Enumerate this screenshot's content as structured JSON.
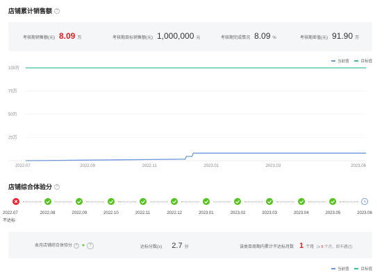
{
  "sales_section": {
    "title": "店铺累计销售额",
    "stats": [
      {
        "label": "考核期销售额(元)",
        "value": "8.09",
        "unit": "万"
      },
      {
        "label": "考核期目标销售额(元)",
        "value": "1,000,000",
        "unit": "元"
      },
      {
        "label": "考核期完成情况",
        "value": "8.09",
        "unit": "%"
      },
      {
        "label": "考核期差值(元)",
        "value": "91.90",
        "unit": "万"
      }
    ],
    "legend": [
      {
        "label": "当前值",
        "color": "#6b95e0"
      },
      {
        "label": "目标值",
        "color": "#3cbf9c"
      }
    ]
  },
  "chart_data": {
    "type": "line",
    "x": [
      "2022.07",
      "2022.08",
      "2022.09",
      "2022.10",
      "2022.11",
      "2022.12",
      "2023.01",
      "2023.02",
      "2023.03",
      "2023.04",
      "2023.05",
      "2023.06"
    ],
    "x_tick_labels": [
      "2022.07",
      "2022.09",
      "2022.11",
      "2023.01",
      "2023.03",
      "2023.06"
    ],
    "y_tick_labels": [
      "100万",
      "75万",
      "50万",
      "25万"
    ],
    "ylim": [
      0,
      100
    ],
    "ylabel": "",
    "xlabel": "",
    "grid": true,
    "series": [
      {
        "name": "当前值",
        "color": "#6b95e0",
        "values": [
          0,
          0.3,
          0.6,
          0.9,
          1.2,
          1.6,
          8.09,
          8.09,
          8.09,
          8.09,
          8.09,
          8.09
        ]
      },
      {
        "name": "目标值",
        "color": "#3cbf9c",
        "values": [
          100,
          100,
          100,
          100,
          100,
          100,
          100,
          100,
          100,
          100,
          100,
          100
        ]
      }
    ]
  },
  "score_section": {
    "title": "店铺综合体验分",
    "timeline": [
      {
        "date": "2022.07",
        "status": "fail",
        "note": "不达标"
      },
      {
        "date": "2022.08",
        "status": "ok",
        "note": ""
      },
      {
        "date": "2022.09",
        "status": "ok",
        "note": ""
      },
      {
        "date": "2022.10",
        "status": "ok",
        "note": ""
      },
      {
        "date": "2022.11",
        "status": "ok",
        "note": ""
      },
      {
        "date": "2022.12",
        "status": "ok",
        "note": ""
      },
      {
        "date": "2023.01",
        "status": "ok",
        "note": ""
      },
      {
        "date": "2023.02",
        "status": "ok",
        "note": ""
      },
      {
        "date": "2023.03",
        "status": "ok",
        "note": ""
      },
      {
        "date": "2023.04",
        "status": "ok",
        "note": ""
      },
      {
        "date": "2023.05",
        "status": "ok",
        "note": ""
      },
      {
        "date": "2023.06",
        "status": "pending",
        "note": ""
      }
    ],
    "summary": {
      "month_label": "本月店铺综合体验分",
      "pass_label": "达标分数(≥)",
      "pass_value": "2.7",
      "pass_unit": "分",
      "fail_label": "该类目周期内累计不达标月数",
      "fail_value": "1",
      "fail_unit": "个月",
      "fail_note_prefix": "(≥",
      "fail_note_value": "5",
      "fail_note_suffix": "个月，即不通过)"
    },
    "legend": [
      {
        "label": "当前值",
        "color": "#6b95e0"
      },
      {
        "label": "目标值",
        "color": "#3cbf9c"
      }
    ]
  }
}
